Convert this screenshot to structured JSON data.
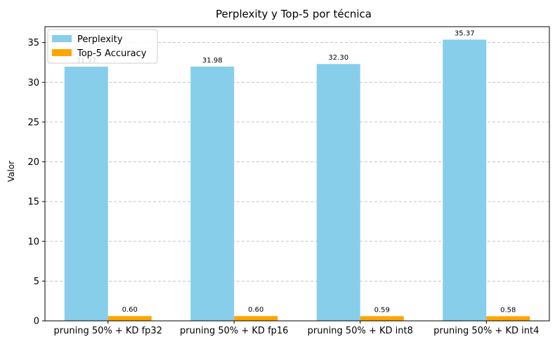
{
  "chart_data": {
    "type": "bar",
    "title": "Perplexity y Top-5 por técnica",
    "xlabel": "",
    "ylabel": "Valor",
    "ylim": [
      0,
      37
    ],
    "yticks": [
      0,
      5,
      10,
      15,
      20,
      25,
      30,
      35
    ],
    "grid": "y-dashed",
    "legend_position": "top-left",
    "categories": [
      "pruning 50% + KD fp32",
      "pruning 50% + KD fp16",
      "pruning 50% + KD int8",
      "pruning 50% + KD int4"
    ],
    "series": [
      {
        "name": "Perplexity",
        "color": "#87ceeb",
        "values": [
          31.97,
          31.98,
          32.3,
          35.37
        ],
        "labels": [
          "31.97",
          "31.98",
          "32.30",
          "35.37"
        ]
      },
      {
        "name": "Top-5 Accuracy",
        "color": "#ffa500",
        "values": [
          0.6,
          0.6,
          0.59,
          0.58
        ],
        "labels": [
          "0.60",
          "0.60",
          "0.59",
          "0.58"
        ]
      }
    ]
  }
}
